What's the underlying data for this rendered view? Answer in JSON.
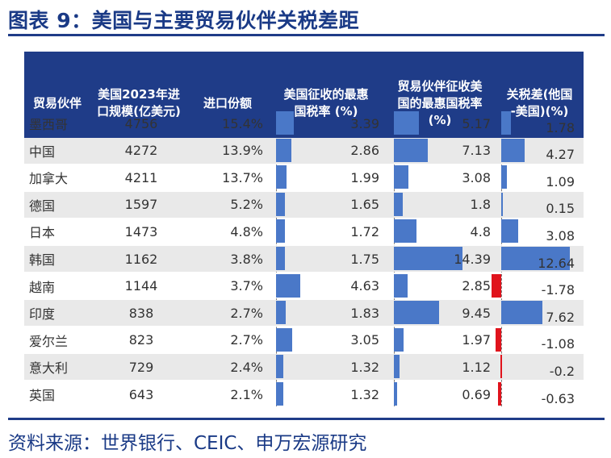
{
  "title": "图表 9：美国与主要贸易伙伴关税差距",
  "source": "资料来源：世界银行、CEIC、申万宏源研究",
  "colors": {
    "header_bg": "#1f3c88",
    "bar_blue": "#4a78c8",
    "bar_red": "#e0131c",
    "row_alt": "#e9e9e9"
  },
  "chart_data": {
    "type": "table",
    "columns": [
      "贸易伙伴",
      "美国2023年进\n口规模(亿美元)",
      "进口份额",
      "美国征收的最惠\n国税率 (%)",
      "贸易伙伴征收美\n国的最惠国税率\n(%)",
      "关税差(他国\n-美国)(%)"
    ],
    "rows": [
      {
        "partner": "墨西哥",
        "imports": "4756",
        "share": "15.4%",
        "us_rate": 3.39,
        "partner_rate": 5.17,
        "diff": 1.78
      },
      {
        "partner": "中国",
        "imports": "4272",
        "share": "13.9%",
        "us_rate": 2.86,
        "partner_rate": 7.13,
        "diff": 4.27
      },
      {
        "partner": "加拿大",
        "imports": "4211",
        "share": "13.7%",
        "us_rate": 1.99,
        "partner_rate": 3.08,
        "diff": 1.09
      },
      {
        "partner": "德国",
        "imports": "1597",
        "share": "5.2%",
        "us_rate": 1.65,
        "partner_rate": 1.8,
        "diff": 0.15
      },
      {
        "partner": "日本",
        "imports": "1473",
        "share": "4.8%",
        "us_rate": 1.72,
        "partner_rate": 4.8,
        "diff": 3.08
      },
      {
        "partner": "韩国",
        "imports": "1162",
        "share": "3.8%",
        "us_rate": 1.75,
        "partner_rate": 14.39,
        "diff": 12.64
      },
      {
        "partner": "越南",
        "imports": "1144",
        "share": "3.7%",
        "us_rate": 4.63,
        "partner_rate": 2.85,
        "diff": -1.78
      },
      {
        "partner": "印度",
        "imports": "838",
        "share": "2.7%",
        "us_rate": 1.83,
        "partner_rate": 9.45,
        "diff": 7.62
      },
      {
        "partner": "爱尔兰",
        "imports": "823",
        "share": "2.7%",
        "us_rate": 3.05,
        "partner_rate": 1.97,
        "diff": -1.08
      },
      {
        "partner": "意大利",
        "imports": "729",
        "share": "2.4%",
        "us_rate": 1.32,
        "partner_rate": 1.12,
        "diff": -0.2
      },
      {
        "partner": "英国",
        "imports": "643",
        "share": "2.1%",
        "us_rate": 1.32,
        "partner_rate": 0.69,
        "diff": -0.63
      }
    ]
  }
}
